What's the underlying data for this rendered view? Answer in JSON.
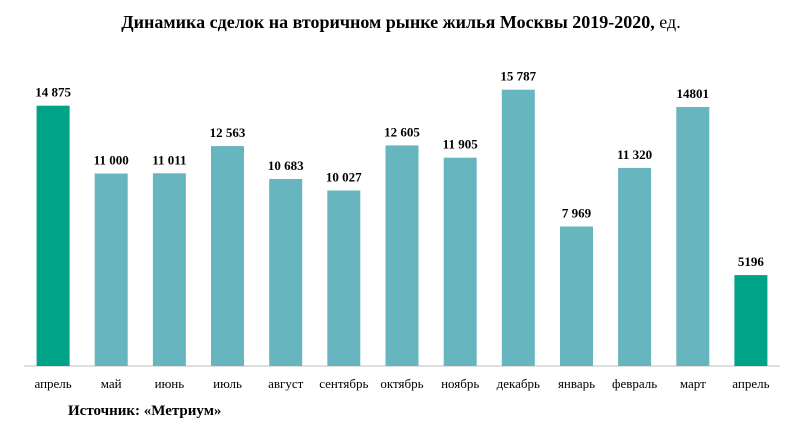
{
  "title_main": "Динамика сделок на вторичном рынке жилья Москвы 2019-2020,",
  "title_unit": " ед.",
  "source": "Источник: «Метриум»",
  "colors": {
    "highlight": "#00a388",
    "regular": "#67b6bf",
    "axis": "#bfbfbf",
    "text": "#000000"
  },
  "chart_data": {
    "type": "bar",
    "title": "Динамика сделок на вторичном рынке жилья Москвы 2019-2020, ед.",
    "categories": [
      "апрель",
      "май",
      "июнь",
      "июль",
      "август",
      "сентябрь",
      "октябрь",
      "ноябрь",
      "декабрь",
      "январь",
      "февраль",
      "март",
      "апрель"
    ],
    "values": [
      14875,
      11000,
      11011,
      12563,
      10683,
      10027,
      12605,
      11905,
      15787,
      7969,
      11320,
      14801,
      5196
    ],
    "value_labels": [
      "14 875",
      "11 000",
      "11 011",
      "12 563",
      "10 683",
      "10 027",
      "12 605",
      "11 905",
      "15 787",
      "7 969",
      "11 320",
      "14801",
      "5196"
    ],
    "highlight": [
      true,
      false,
      false,
      false,
      false,
      false,
      false,
      false,
      false,
      false,
      false,
      false,
      true
    ],
    "xlabel": "",
    "ylabel": "",
    "ylim": [
      0,
      16000
    ],
    "grid": false,
    "legend": "none"
  }
}
